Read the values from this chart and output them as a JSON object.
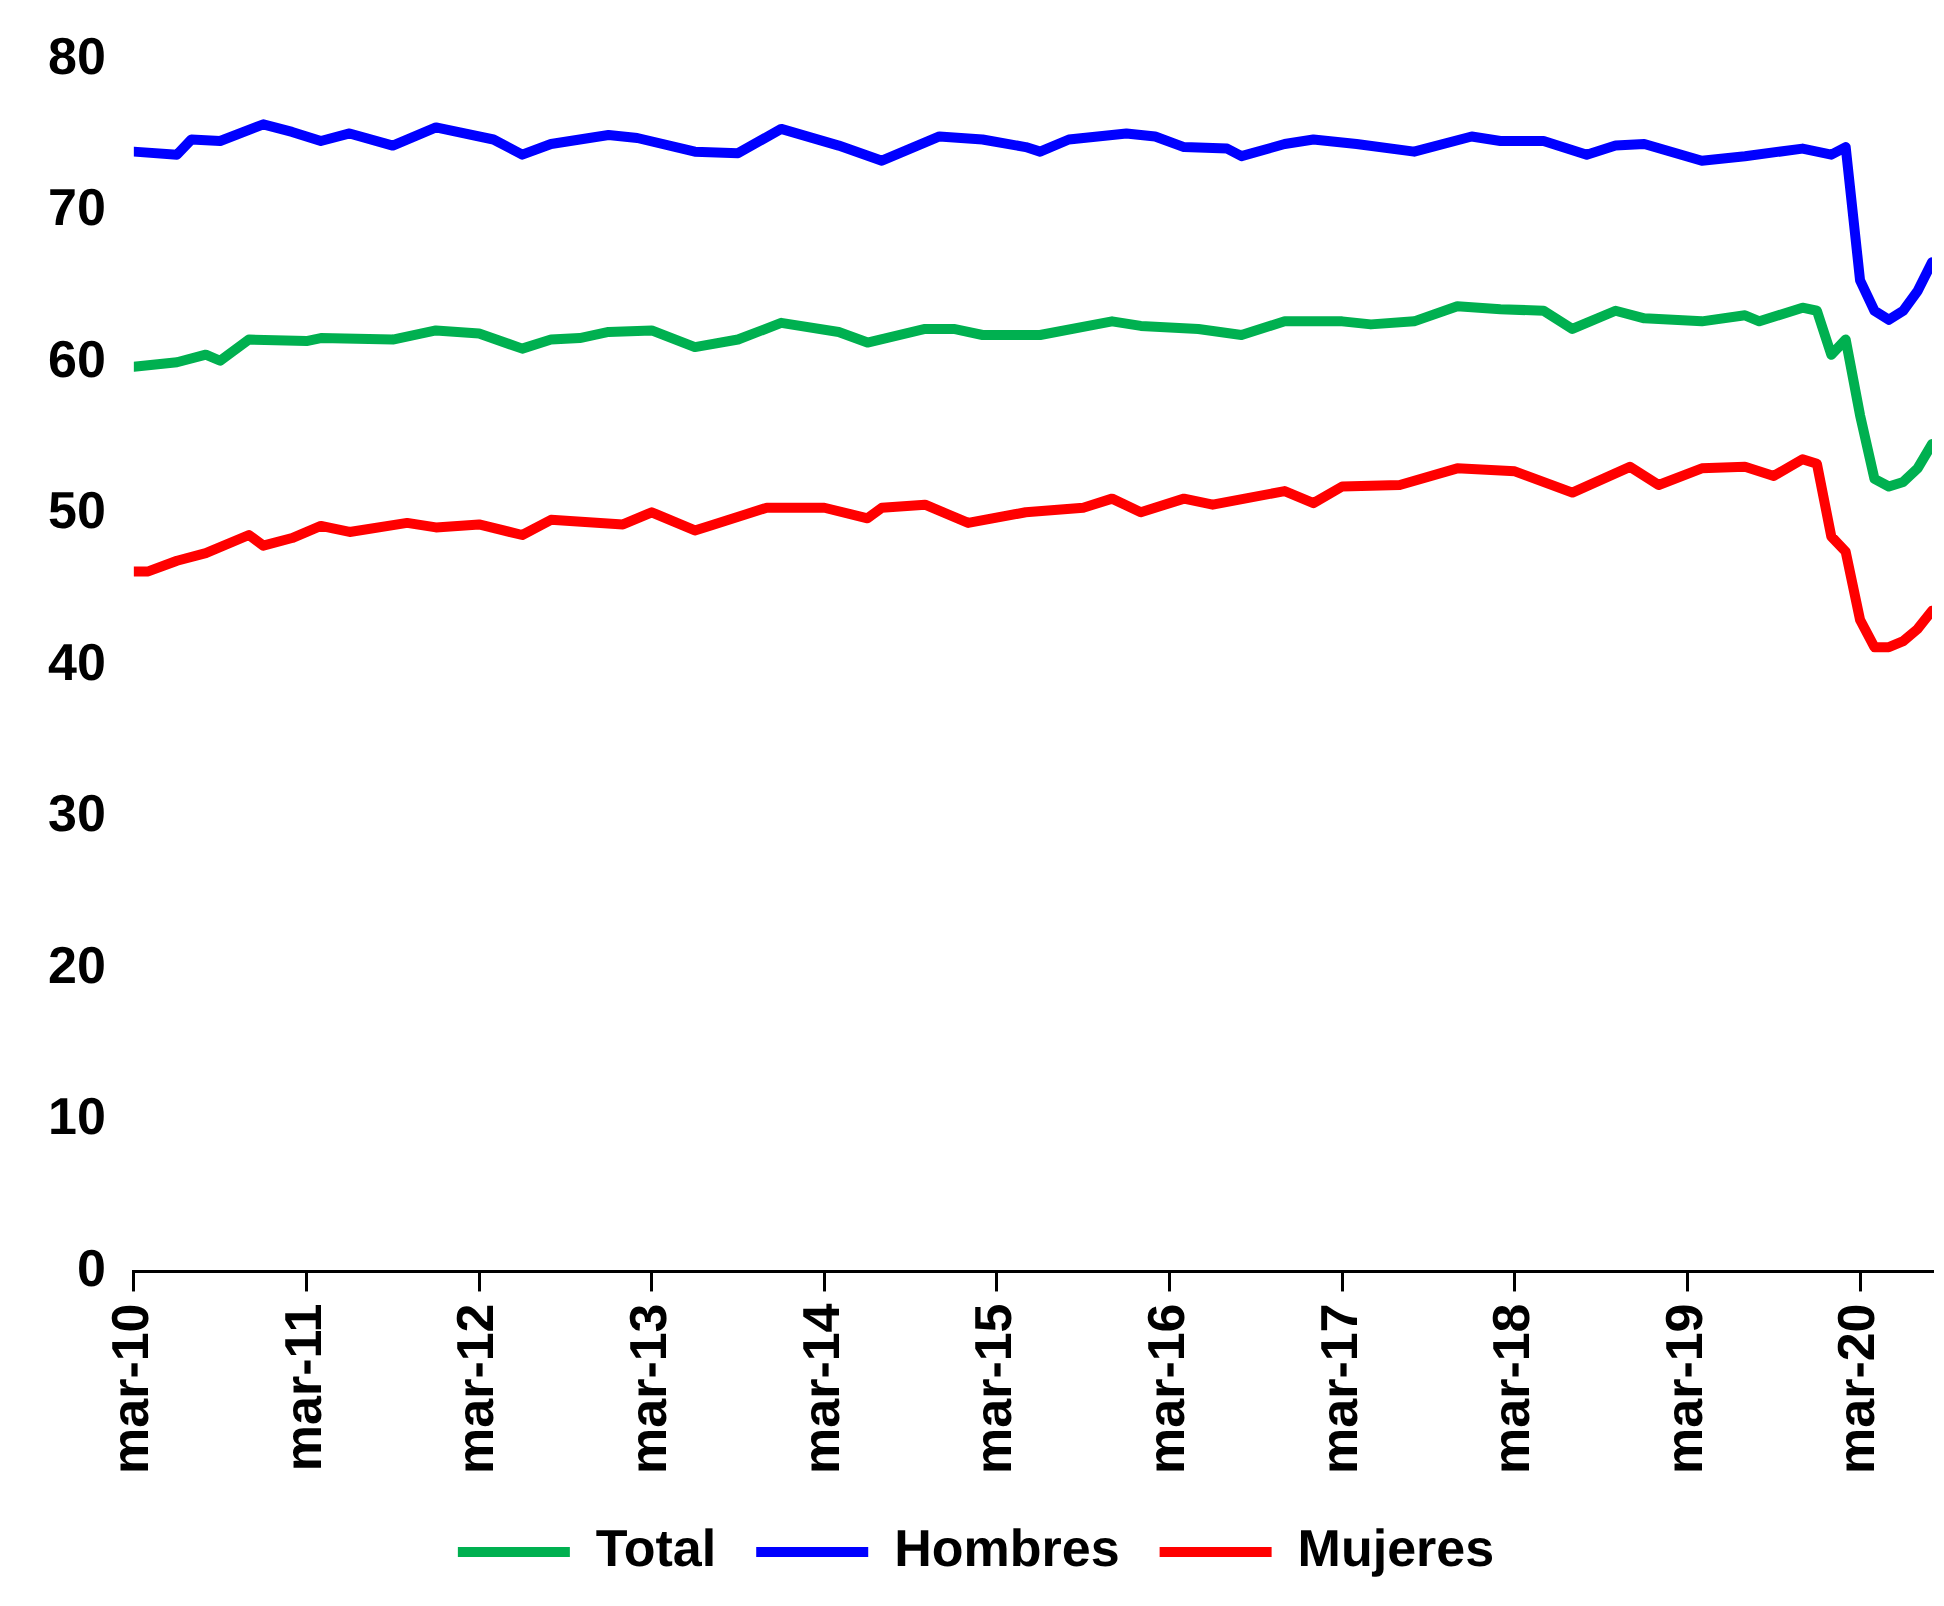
{
  "chart_data": {
    "type": "line",
    "xlim": [
      "2010-03",
      "2020-08"
    ],
    "xticks": [
      {
        "value": "2010-03",
        "label": "mar-10"
      },
      {
        "value": "2011-03",
        "label": "mar-11"
      },
      {
        "value": "2012-03",
        "label": "mar-12"
      },
      {
        "value": "2013-03",
        "label": "mar-13"
      },
      {
        "value": "2014-03",
        "label": "mar-14"
      },
      {
        "value": "2015-03",
        "label": "mar-15"
      },
      {
        "value": "2016-03",
        "label": "mar-16"
      },
      {
        "value": "2017-03",
        "label": "mar-17"
      },
      {
        "value": "2018-03",
        "label": "mar-18"
      },
      {
        "value": "2019-03",
        "label": "mar-19"
      },
      {
        "value": "2020-03",
        "label": "mar-20"
      }
    ],
    "ylim": [
      0,
      80
    ],
    "yticks": [
      0,
      10,
      20,
      30,
      40,
      50,
      60,
      70,
      80
    ],
    "grid": false,
    "legend": "bottom",
    "marker": "none",
    "line_style": "solid",
    "series": [
      {
        "name": "Total",
        "color": "#00b050",
        "x": [
          "2010-03",
          "2010-06",
          "2010-08",
          "2010-09",
          "2010-11",
          "2011-03",
          "2011-04",
          "2011-09",
          "2011-12",
          "2012-03",
          "2012-06",
          "2012-08",
          "2012-10",
          "2012-12",
          "2013-03",
          "2013-06",
          "2013-09",
          "2013-12",
          "2014-04",
          "2014-06",
          "2014-10",
          "2014-12",
          "2015-02",
          "2015-06",
          "2015-11",
          "2016-01",
          "2016-05",
          "2016-08",
          "2016-11",
          "2017-03",
          "2017-05",
          "2017-08",
          "2017-11",
          "2018-02",
          "2018-05",
          "2018-07",
          "2018-10",
          "2018-12",
          "2019-04",
          "2019-07",
          "2019-08",
          "2019-11",
          "2019-12",
          "2020-01",
          "2020-02",
          "2020-03",
          "2020-04",
          "2020-05",
          "2020-06",
          "2020-07",
          "2020-08"
        ],
        "values": [
          59.7,
          60.0,
          60.5,
          60.1,
          61.5,
          61.4,
          61.6,
          61.5,
          62.1,
          61.9,
          60.9,
          61.5,
          61.6,
          62.0,
          62.1,
          61.0,
          61.5,
          62.6,
          62.0,
          61.3,
          62.2,
          62.2,
          61.8,
          61.8,
          62.7,
          62.4,
          62.2,
          61.8,
          62.7,
          62.7,
          62.5,
          62.7,
          63.7,
          63.5,
          63.4,
          62.2,
          63.4,
          62.9,
          62.7,
          63.1,
          62.7,
          63.6,
          63.4,
          60.5,
          61.5,
          56.5,
          52.3,
          51.8,
          52.1,
          53.0,
          54.6
        ]
      },
      {
        "name": "Hombres",
        "color": "#0000ff",
        "x": [
          "2010-03",
          "2010-06",
          "2010-07",
          "2010-09",
          "2010-12",
          "2011-02",
          "2011-04",
          "2011-06",
          "2011-09",
          "2011-12",
          "2012-04",
          "2012-06",
          "2012-08",
          "2012-12",
          "2013-02",
          "2013-06",
          "2013-09",
          "2013-12",
          "2014-04",
          "2014-07",
          "2014-11",
          "2015-02",
          "2015-05",
          "2015-06",
          "2015-08",
          "2015-10",
          "2015-12",
          "2016-02",
          "2016-04",
          "2016-07",
          "2016-08",
          "2016-11",
          "2017-01",
          "2017-04",
          "2017-08",
          "2017-12",
          "2018-02",
          "2018-05",
          "2018-08",
          "2018-10",
          "2018-12",
          "2019-04",
          "2019-07",
          "2019-11",
          "2020-01",
          "2020-02",
          "2020-03",
          "2020-04",
          "2020-05",
          "2020-06",
          "2020-07",
          "2020-08"
        ],
        "values": [
          73.9,
          73.7,
          74.7,
          74.6,
          75.7,
          75.2,
          74.6,
          75.1,
          74.3,
          75.5,
          74.7,
          73.7,
          74.4,
          75.0,
          74.8,
          73.9,
          73.8,
          75.4,
          74.3,
          73.3,
          74.9,
          74.7,
          74.2,
          73.9,
          74.7,
          74.9,
          75.1,
          74.9,
          74.2,
          74.1,
          73.6,
          74.4,
          74.7,
          74.4,
          73.9,
          74.9,
          74.6,
          74.6,
          73.7,
          74.3,
          74.4,
          73.3,
          73.6,
          74.1,
          73.7,
          74.2,
          65.4,
          63.4,
          62.8,
          63.4,
          64.7,
          66.6
        ]
      },
      {
        "name": "Mujeres",
        "color": "#ff0000",
        "x": [
          "2010-03",
          "2010-04",
          "2010-06",
          "2010-08",
          "2010-11",
          "2010-12",
          "2011-02",
          "2011-04",
          "2011-06",
          "2011-10",
          "2011-12",
          "2012-03",
          "2012-06",
          "2012-08",
          "2013-01",
          "2013-03",
          "2013-06",
          "2013-07",
          "2013-11",
          "2014-03",
          "2014-06",
          "2014-07",
          "2014-10",
          "2015-01",
          "2015-05",
          "2015-09",
          "2015-11",
          "2016-01",
          "2016-04",
          "2016-06",
          "2016-11",
          "2017-01",
          "2017-03",
          "2017-07",
          "2017-11",
          "2018-03",
          "2018-07",
          "2018-11",
          "2019-01",
          "2019-04",
          "2019-07",
          "2019-09",
          "2019-11",
          "2019-12",
          "2020-01",
          "2020-02",
          "2020-03",
          "2020-04",
          "2020-05",
          "2020-06",
          "2020-07",
          "2020-08"
        ],
        "values": [
          46.2,
          46.2,
          46.9,
          47.4,
          48.6,
          47.9,
          48.4,
          49.2,
          48.8,
          49.4,
          49.1,
          49.3,
          48.6,
          49.6,
          49.3,
          50.1,
          48.9,
          49.2,
          50.4,
          50.4,
          49.7,
          50.4,
          50.6,
          49.4,
          50.1,
          50.4,
          51.0,
          50.1,
          51.0,
          50.6,
          51.5,
          50.7,
          51.8,
          51.9,
          53.0,
          52.8,
          51.4,
          53.1,
          51.9,
          53.0,
          53.1,
          52.5,
          53.6,
          53.3,
          48.5,
          47.5,
          43.0,
          41.2,
          41.2,
          41.6,
          42.4,
          43.6
        ]
      }
    ]
  }
}
